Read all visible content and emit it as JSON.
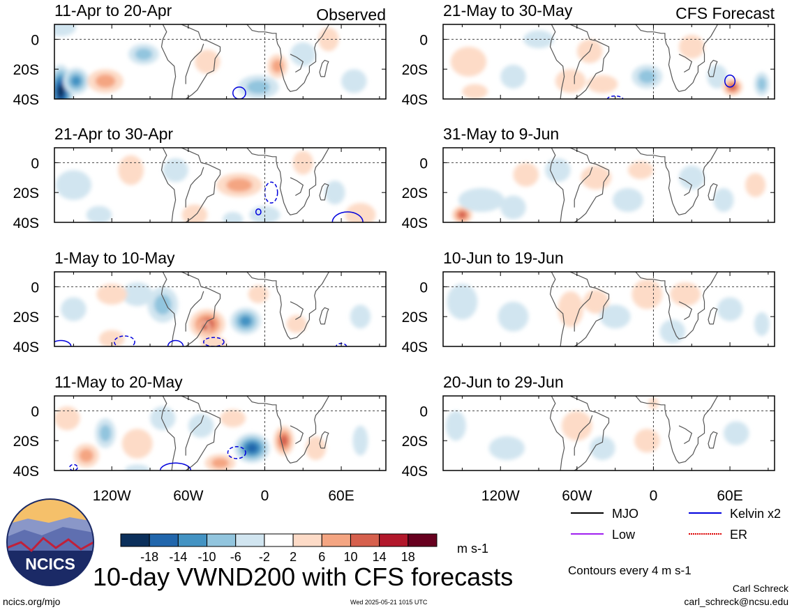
{
  "title": "10-day VWND200 with CFS forecasts",
  "columns": {
    "left_tag": "Observed",
    "right_tag": "CFS Forecast"
  },
  "colorbar": {
    "ticks": [
      "-18",
      "-14",
      "-10",
      "-6",
      "-2",
      "2",
      "6",
      "10",
      "14",
      "18"
    ],
    "unit": "m s-1",
    "colors": [
      "#0b2f5b",
      "#2166ac",
      "#4393c3",
      "#92c5de",
      "#d1e5f0",
      "#ffffff",
      "#fddbc7",
      "#f4a582",
      "#d6604d",
      "#b2182b",
      "#67001f"
    ]
  },
  "legend": [
    {
      "label": "MJO",
      "color": "#000000"
    },
    {
      "label": "Kelvin x2",
      "color": "#0000dd"
    },
    {
      "label": "Low",
      "color": "#a020f0"
    },
    {
      "label": "ER",
      "color": "#dd0000"
    }
  ],
  "contour_note": "Contours every 4 m s-1",
  "author": "Carl Schreck",
  "email": "carl_schreck@ncsu.edu",
  "site": "ncics.org/mjo",
  "timestamp": "Wed 2025-05-21 1015 UTC",
  "logo_text": "NCICS",
  "chart_data": {
    "type": "heatmap",
    "title": "10-day VWND200 with CFS forecasts",
    "unit": "m s-1",
    "x_ticks": [
      "120W",
      "60W",
      "0",
      "60E"
    ],
    "y_ticks": [
      "0",
      "20S",
      "40S"
    ],
    "xlim": [
      "-165",
      "95"
    ],
    "ylim": [
      "-40",
      "10"
    ],
    "panels": [
      {
        "col": 0,
        "row": 0,
        "label": "11-Apr to 20-Apr",
        "source": "Observed",
        "blobs": [
          [
            -160,
            -35,
            -22,
            10,
            18
          ],
          [
            -148,
            -28,
            -12,
            10,
            9
          ],
          [
            -125,
            -28,
            10,
            14,
            8
          ],
          [
            -95,
            -10,
            -10,
            12,
            7
          ],
          [
            -45,
            -15,
            6,
            10,
            8
          ],
          [
            -5,
            -32,
            -7,
            16,
            8
          ],
          [
            10,
            -18,
            9,
            8,
            8
          ],
          [
            30,
            -10,
            -6,
            10,
            8
          ],
          [
            50,
            0,
            6,
            8,
            8
          ],
          [
            70,
            -28,
            -5,
            10,
            8
          ],
          [
            -160,
            8,
            -4,
            12,
            6
          ]
        ],
        "contours": [
          [
            -20,
            -36,
            5,
            4,
            "kelvin"
          ]
        ]
      },
      {
        "col": 0,
        "row": 1,
        "label": "21-Apr to 30-Apr",
        "source": "Observed",
        "blobs": [
          [
            -150,
            -15,
            -4,
            14,
            10
          ],
          [
            -105,
            -5,
            4,
            10,
            10
          ],
          [
            -70,
            -5,
            -4,
            10,
            8
          ],
          [
            -20,
            -15,
            9,
            18,
            8
          ],
          [
            0,
            -35,
            -6,
            12,
            6
          ],
          [
            -55,
            -35,
            4,
            10,
            7
          ],
          [
            -25,
            -38,
            -5,
            8,
            5
          ],
          [
            55,
            -20,
            -5,
            8,
            8
          ],
          [
            30,
            0,
            5,
            8,
            8
          ],
          [
            75,
            -35,
            5,
            12,
            8
          ],
          [
            -130,
            -35,
            -4,
            10,
            6
          ]
        ],
        "contours": [
          [
            5,
            -20,
            5,
            7,
            "kelvin_dash"
          ],
          [
            65,
            -40,
            12,
            7,
            "kelvin"
          ],
          [
            -5,
            -33,
            2,
            2,
            "kelvin"
          ]
        ]
      },
      {
        "col": 0,
        "row": 2,
        "label": "1-May to 10-May",
        "source": "Observed",
        "blobs": [
          [
            -45,
            -25,
            12,
            14,
            10
          ],
          [
            -47,
            -27,
            16,
            4,
            4
          ],
          [
            -80,
            -12,
            -8,
            12,
            12
          ],
          [
            -100,
            -5,
            -4,
            12,
            8
          ],
          [
            -15,
            -23,
            -12,
            12,
            9
          ],
          [
            -120,
            -5,
            4,
            12,
            7
          ],
          [
            -120,
            -35,
            5,
            10,
            6
          ],
          [
            -5,
            -5,
            6,
            8,
            6
          ],
          [
            25,
            -25,
            5,
            8,
            6
          ],
          [
            -150,
            -15,
            -4,
            10,
            8
          ],
          [
            75,
            -20,
            -4,
            8,
            8
          ],
          [
            -40,
            -38,
            6,
            10,
            5
          ]
        ],
        "contours": [
          [
            -160,
            -40,
            8,
            4,
            "kelvin"
          ],
          [
            -70,
            -40,
            6,
            4,
            "kelvin"
          ],
          [
            -110,
            -37,
            8,
            4,
            "kelvin_dash"
          ],
          [
            -40,
            -37,
            8,
            3,
            "kelvin_dash"
          ],
          [
            60,
            -40,
            4,
            2,
            "kelvin_dash"
          ]
        ]
      },
      {
        "col": 0,
        "row": 3,
        "label": "11-May to 20-May",
        "source": "Observed",
        "blobs": [
          [
            -125,
            -15,
            -8,
            8,
            10
          ],
          [
            -140,
            -30,
            10,
            10,
            8
          ],
          [
            -100,
            -22,
            6,
            12,
            10
          ],
          [
            -80,
            -5,
            -4,
            10,
            8
          ],
          [
            -35,
            -35,
            10,
            12,
            6
          ],
          [
            -10,
            -25,
            -16,
            14,
            10
          ],
          [
            15,
            -20,
            11,
            8,
            10
          ],
          [
            -50,
            -10,
            -4,
            10,
            8
          ],
          [
            -25,
            -5,
            5,
            10,
            6
          ],
          [
            40,
            -25,
            5,
            8,
            8
          ],
          [
            75,
            -20,
            -6,
            6,
            10
          ],
          [
            -155,
            -5,
            4,
            10,
            8
          ],
          [
            -100,
            -40,
            -4,
            10,
            4
          ]
        ],
        "contours": [
          [
            -22,
            -28,
            7,
            4,
            "kelvin_dash"
          ],
          [
            -70,
            -40,
            12,
            5,
            "kelvin"
          ],
          [
            -150,
            -38,
            3,
            2,
            "kelvin_dash"
          ]
        ]
      },
      {
        "col": 1,
        "row": 0,
        "label": "21-May to 30-May",
        "source": "CFS Forecast",
        "blobs": [
          [
            -145,
            -15,
            5,
            14,
            10
          ],
          [
            -110,
            -25,
            -4,
            10,
            8
          ],
          [
            -90,
            0,
            -3,
            12,
            6
          ],
          [
            -65,
            -28,
            6,
            12,
            8
          ],
          [
            -50,
            -8,
            5,
            10,
            8
          ],
          [
            -5,
            -25,
            -10,
            12,
            8
          ],
          [
            -40,
            -30,
            4,
            12,
            6
          ],
          [
            30,
            -5,
            5,
            10,
            8
          ],
          [
            50,
            -25,
            -4,
            8,
            8
          ],
          [
            62,
            -32,
            12,
            8,
            6
          ],
          [
            85,
            -30,
            -8,
            6,
            8
          ],
          [
            -140,
            -35,
            4,
            10,
            5
          ]
        ],
        "contours": [
          [
            60,
            -28,
            4,
            4,
            "kelvin"
          ],
          [
            -30,
            -40,
            6,
            2,
            "kelvin_dash"
          ]
        ]
      },
      {
        "col": 1,
        "row": 1,
        "label": "31-May to 9-Jun",
        "source": "CFS Forecast",
        "blobs": [
          [
            -150,
            -35,
            12,
            8,
            6
          ],
          [
            -135,
            -25,
            -6,
            18,
            8
          ],
          [
            -110,
            -30,
            -4,
            10,
            8
          ],
          [
            -100,
            -8,
            4,
            10,
            8
          ],
          [
            -75,
            -5,
            -3,
            10,
            8
          ],
          [
            -45,
            -10,
            4,
            12,
            8
          ],
          [
            -20,
            -25,
            -3,
            12,
            8
          ],
          [
            -10,
            -5,
            4,
            10,
            6
          ],
          [
            30,
            -10,
            -3,
            10,
            8
          ],
          [
            55,
            -25,
            -3,
            8,
            8
          ],
          [
            80,
            -15,
            3,
            8,
            8
          ],
          [
            -150,
            -10,
            -2,
            10,
            6
          ]
        ],
        "contours": []
      },
      {
        "col": 1,
        "row": 2,
        "label": "10-Jun to 19-Jun",
        "source": "CFS Forecast",
        "blobs": [
          [
            -150,
            -10,
            -3,
            12,
            12
          ],
          [
            -110,
            -20,
            -4,
            12,
            10
          ],
          [
            -65,
            -15,
            5,
            10,
            12
          ],
          [
            -45,
            -10,
            4,
            10,
            8
          ],
          [
            -30,
            -20,
            -3,
            12,
            8
          ],
          [
            -5,
            -5,
            5,
            12,
            10
          ],
          [
            25,
            -5,
            3,
            12,
            8
          ],
          [
            60,
            -15,
            -3,
            10,
            8
          ],
          [
            85,
            -25,
            -6,
            6,
            8
          ],
          [
            15,
            -30,
            -3,
            10,
            8
          ]
        ],
        "contours": []
      },
      {
        "col": 1,
        "row": 3,
        "label": "20-Jun to 29-Jun",
        "source": "CFS Forecast",
        "blobs": [
          [
            -155,
            -10,
            -3,
            8,
            10
          ],
          [
            -115,
            -25,
            -3,
            14,
            8
          ],
          [
            -60,
            -10,
            3,
            12,
            10
          ],
          [
            -40,
            -25,
            -3,
            10,
            8
          ],
          [
            -5,
            -20,
            3,
            10,
            8
          ],
          [
            20,
            -5,
            -2,
            10,
            6
          ],
          [
            65,
            -15,
            -3,
            10,
            8
          ],
          [
            0,
            5,
            3,
            4,
            4
          ]
        ],
        "contours": []
      }
    ]
  }
}
